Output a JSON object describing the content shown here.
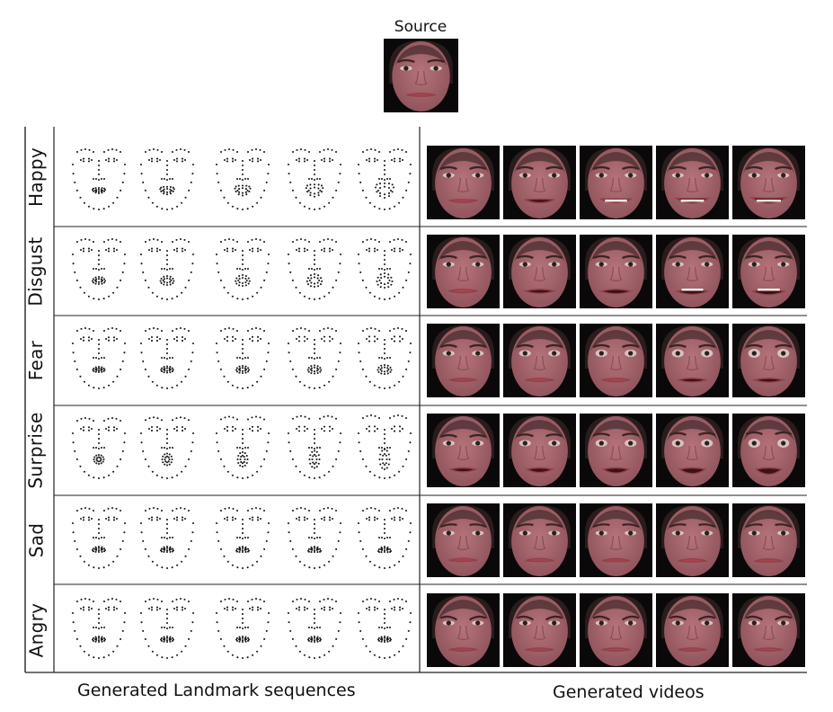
{
  "source": {
    "label": "Source"
  },
  "rows": [
    {
      "label": "Happy",
      "expr": "happy"
    },
    {
      "label": "Disgust",
      "expr": "disgust"
    },
    {
      "label": "Fear",
      "expr": "fear"
    },
    {
      "label": "Surprise",
      "expr": "surprise"
    },
    {
      "label": "Sad",
      "expr": "sad"
    },
    {
      "label": "Angry",
      "expr": "angry"
    }
  ],
  "frames_per_row": 5,
  "captions": {
    "landmarks": "Generated Landmark sequences",
    "videos": "Generated videos"
  },
  "colors": {
    "skin": "#b5737a",
    "skin_shade": "#8e525a",
    "hair": "#2a1c1c",
    "background": "#0b0809",
    "dots": "#1a1a1a"
  }
}
